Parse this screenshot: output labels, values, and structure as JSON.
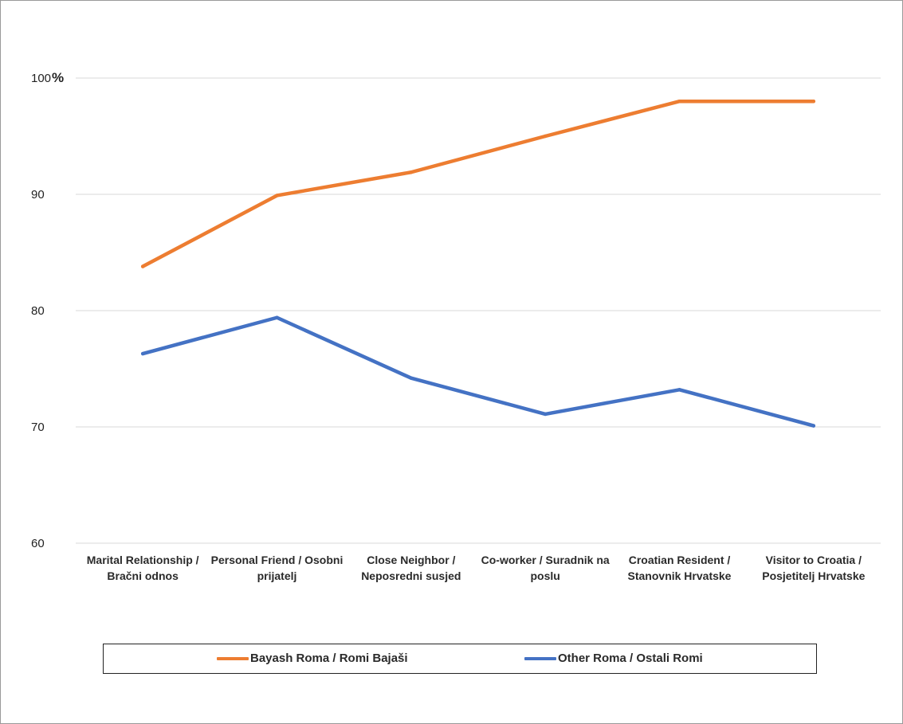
{
  "chart_data": {
    "type": "line",
    "categories": [
      [
        "Marital Relationship /",
        "Bračni odnos"
      ],
      [
        "Personal Friend / Osobni",
        "prijatelj"
      ],
      [
        "Close Neighbor  /",
        "Neposredni susjed"
      ],
      [
        "Co-worker / Suradnik na",
        "poslu"
      ],
      [
        "Croatian Resident /",
        "Stanovnik Hrvatske"
      ],
      [
        "Visitor to Croatia /",
        "Posjetitelj Hrvatske"
      ]
    ],
    "series": [
      {
        "name": "Bayash Roma / Romi Bajaši",
        "color": "#ed7d31",
        "values": [
          83.8,
          89.9,
          91.9,
          95.0,
          98.0,
          98.0
        ]
      },
      {
        "name": "Other Roma / Ostali Romi",
        "color": "#4472c4",
        "values": [
          76.3,
          79.4,
          74.2,
          71.1,
          73.2,
          70.1
        ]
      }
    ],
    "yticks": [
      "60",
      "70",
      "80",
      "90",
      "100"
    ],
    "y_top_suffix": "%",
    "ylim": [
      60,
      100
    ],
    "grid": true,
    "legend_position": "bottom",
    "title": "",
    "xlabel": "",
    "ylabel": ""
  }
}
